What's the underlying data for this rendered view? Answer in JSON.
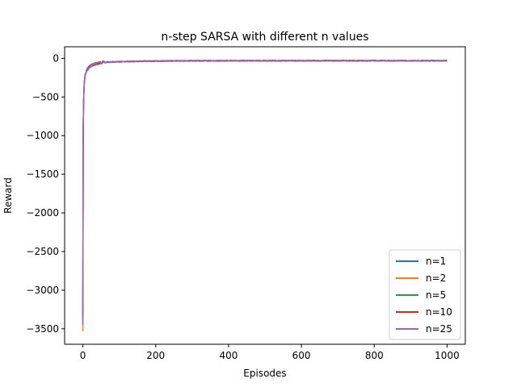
{
  "chart_data": {
    "type": "line",
    "title": "n-step SARSA with different n values",
    "xlabel": "Episodes",
    "ylabel": "Reward",
    "xlim": [
      -50,
      1050
    ],
    "ylim": [
      -3700,
      150
    ],
    "xticks": [
      0,
      200,
      400,
      600,
      800,
      1000
    ],
    "yticks": [
      0,
      -500,
      -1000,
      -1500,
      -2000,
      -2500,
      -3000,
      -3500
    ],
    "xtick_labels": [
      "0",
      "200",
      "400",
      "600",
      "800",
      "1000"
    ],
    "ytick_labels": [
      "0",
      "−500",
      "−1000",
      "−1500",
      "−2000",
      "−2500",
      "−3000",
      "−3500"
    ],
    "grid": false,
    "legend_position": "lower-right",
    "series": [
      {
        "name": "n=1",
        "color": "#1f77b4",
        "start": -3400,
        "tail": -30
      },
      {
        "name": "n=2",
        "color": "#ff7f0e",
        "start": -3530,
        "tail": -31
      },
      {
        "name": "n=5",
        "color": "#2ca02c",
        "start": -3350,
        "tail": -30
      },
      {
        "name": "n=10",
        "color": "#d62728",
        "start": -3300,
        "tail": -31
      },
      {
        "name": "n=25",
        "color": "#9467bd",
        "start": -3450,
        "tail": -32
      }
    ],
    "episodes": 1000
  }
}
